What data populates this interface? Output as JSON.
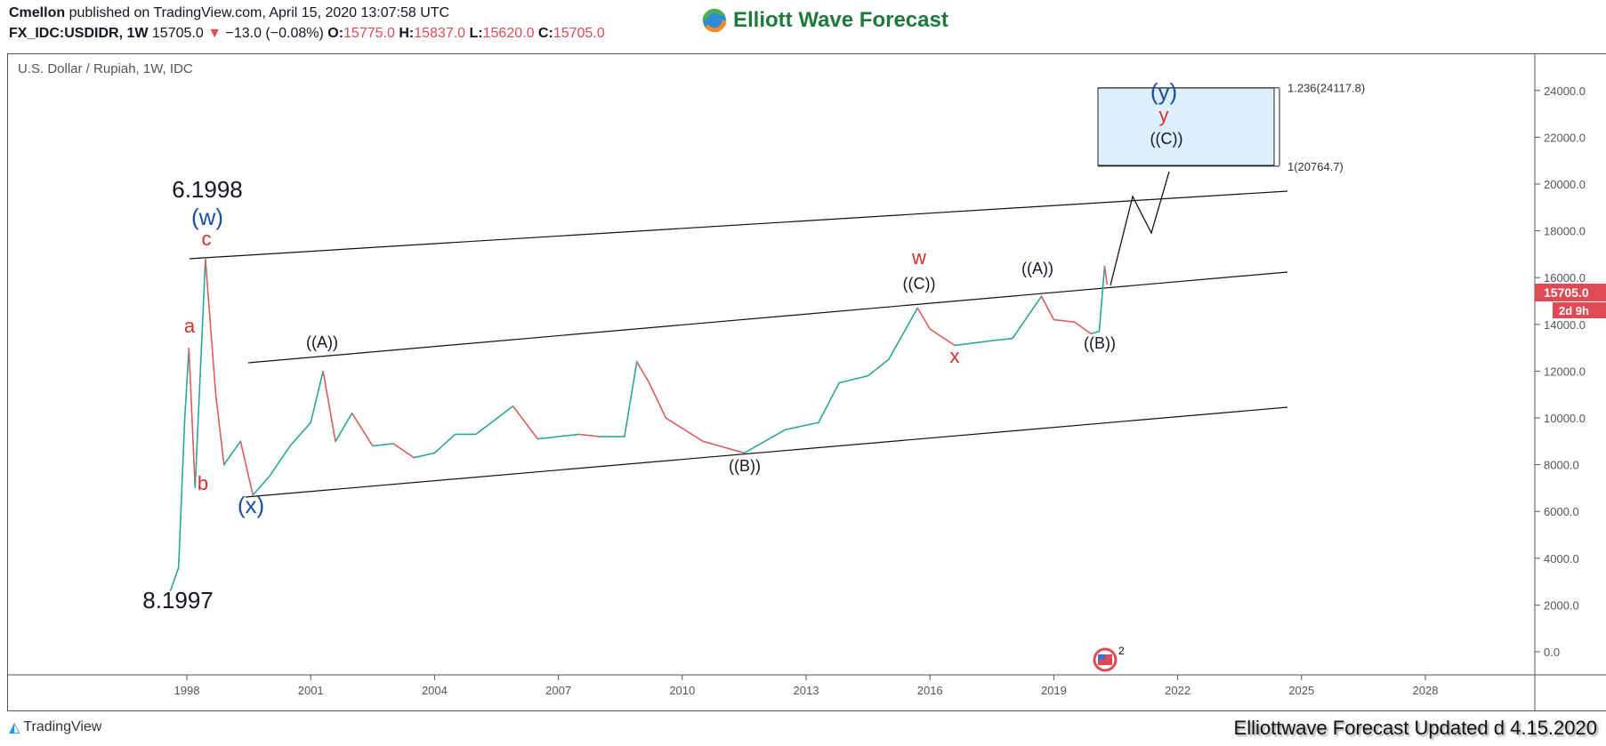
{
  "header": {
    "author": "Cmellon",
    "published": "published on TradingView.com, April 15, 2020 13:07:58 UTC",
    "symbol": "FX_IDC:USDIDR, 1W",
    "last": "15705.0",
    "change": "−13.0 (−0.08%)",
    "o_label": "O:",
    "o": "15775.0",
    "h_label": "H:",
    "h": "15837.0",
    "l_label": "L:",
    "l": "15620.0",
    "c_label": "C:",
    "c": "15705.0",
    "down_icon": "triangle-down-icon"
  },
  "logo": {
    "text": "Elliott Wave Forecast"
  },
  "chart_title": "U.S. Dollar / Rupiah, 1W, IDC",
  "price_tag": {
    "value": "15705.0",
    "countdown": "2d 9h",
    "color": "#e04a55"
  },
  "footer": {
    "brand": "TradingView",
    "note": "Elliottwave Forecast Updated d 4.15.2020"
  },
  "chart_data": {
    "type": "line",
    "ylim": [
      -1000,
      25000
    ],
    "y_ticks": [
      "24000.0",
      "22000.0",
      "20000.0",
      "18000.0",
      "16000.0",
      "14000.0",
      "12000.0",
      "10000.0",
      "8000.0",
      "6000.0",
      "4000.0",
      "2000.0",
      "0.0"
    ],
    "x_ticks": [
      "1998",
      "2001",
      "2004",
      "2007",
      "2010",
      "2013",
      "2016",
      "2019",
      "2022",
      "2025",
      "2028"
    ],
    "colors": {
      "up": "#26a69a",
      "down": "#ef5350",
      "target_box": "#ddeefc"
    },
    "series": [
      {
        "x": [
          1997.6,
          1997.8,
          1997.95,
          1998.05,
          1998.2,
          1998.45,
          1998.7,
          1998.9,
          1999.3,
          1999.6,
          2000.0,
          2000.5,
          2001.0,
          2001.3,
          2001.6,
          2002.0,
          2002.5,
          2003.0,
          2003.5,
          2004.0,
          2004.5,
          2005.0,
          2005.9,
          2006.5,
          2007.5,
          2008.0,
          2008.6,
          2008.9,
          2009.2,
          2009.6,
          2010.5,
          2011.5,
          2012.5,
          2013.3,
          2013.8,
          2014.5,
          2015.0,
          2015.7,
          2016.0,
          2016.6,
          2017.5,
          2018.0,
          2018.7,
          2019.0,
          2019.5,
          2019.9,
          2020.1,
          2020.23,
          2020.29
        ],
        "y": [
          2600,
          3600,
          10000,
          13000,
          7000,
          16800,
          11000,
          8000,
          9000,
          6700,
          7500,
          8800,
          9800,
          12000,
          9000,
          10200,
          8800,
          8900,
          8300,
          8500,
          9300,
          9300,
          10500,
          9100,
          9300,
          9200,
          9200,
          12400,
          11500,
          10000,
          9000,
          8500,
          9500,
          9800,
          11500,
          11800,
          12500,
          14700,
          13800,
          13100,
          13300,
          13400,
          15200,
          14200,
          14100,
          13600,
          13700,
          16500,
          15705
        ]
      }
    ],
    "fib_levels": [
      {
        "label": "1.236(24117.8)",
        "value": 24117.8
      },
      {
        "label": "1(20764.7)",
        "value": 20764.7
      }
    ],
    "wave_labels": [
      {
        "text": "6.1998",
        "color": "#131722"
      },
      {
        "text": "(w)",
        "color": "#1c4fa0"
      },
      {
        "text": "c",
        "color": "#d32f2f"
      },
      {
        "text": "a",
        "color": "#d32f2f"
      },
      {
        "text": "b",
        "color": "#d32f2f"
      },
      {
        "text": "(x)",
        "color": "#1c4fa0"
      },
      {
        "text": "8.1997",
        "color": "#131722"
      },
      {
        "text": "((A))",
        "color": "#131722"
      },
      {
        "text": "((B))",
        "color": "#131722"
      },
      {
        "text": "w",
        "color": "#d32f2f"
      },
      {
        "text": "((C))",
        "color": "#131722"
      },
      {
        "text": "x",
        "color": "#d32f2f"
      },
      {
        "text": "((A))",
        "color": "#131722"
      },
      {
        "text": "((B))",
        "color": "#131722"
      },
      {
        "text": "(y)",
        "color": "#1c4fa0"
      },
      {
        "text": "y",
        "color": "#d32f2f"
      },
      {
        "text": "((C))",
        "color": "#131722"
      }
    ],
    "events_badge": "2"
  }
}
